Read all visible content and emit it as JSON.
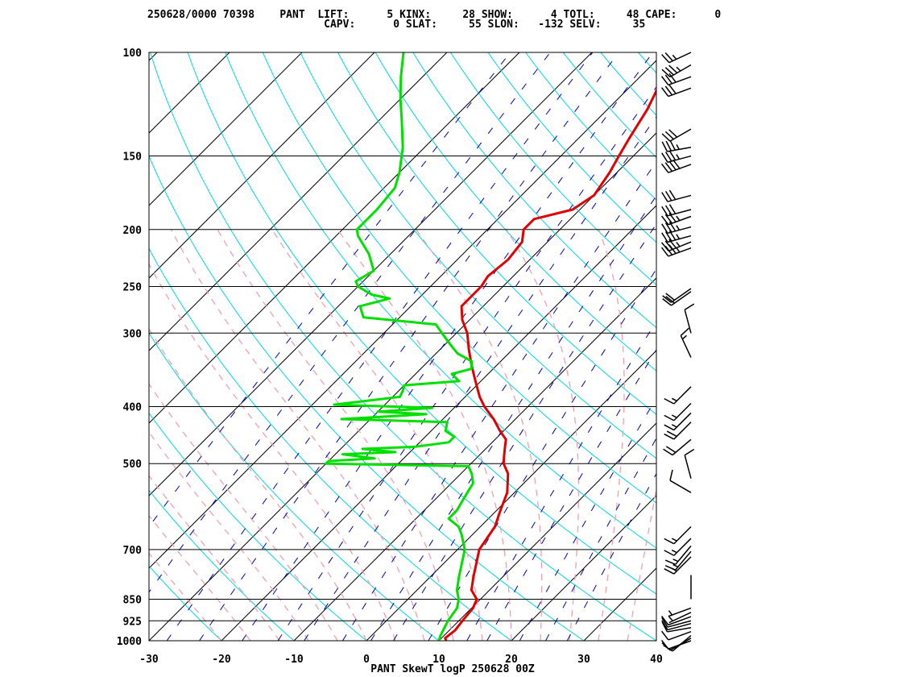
{
  "header": {
    "line1": "250628/0000 70398    PANT  LIFT:      5 KINX:     28 SHOW:      4 TOTL:     48 CAPE:      0",
    "line2": "                            CAPV:      0 SLAT:     55 SLON:   -132 SELV:     35"
  },
  "footer": {
    "title": "PANT SkewT logP 250628 00Z"
  },
  "colors": {
    "temperature": "#e00000",
    "dewpoint": "#00e000",
    "isotherm": "#000000",
    "dry_adiabat": "#00d8e0",
    "moist_adiabat": "#f0a0b0",
    "mixing_ratio": "#0000c0",
    "wind_barb": "#000000"
  },
  "chart_data": {
    "type": "line",
    "title": "PANT SkewT logP 250628 00Z",
    "y_scale": "log-pressure",
    "ylim": [
      1000,
      100
    ],
    "xlim": [
      -30,
      40
    ],
    "xlabel": "",
    "ylabel": "",
    "x_ticks": [
      -30,
      -20,
      -10,
      0,
      10,
      20,
      30,
      40
    ],
    "y_ticks": [
      100,
      150,
      200,
      250,
      300,
      400,
      500,
      700,
      850,
      925,
      1000
    ],
    "x_tick_labels": [
      "-30",
      "-20",
      "-10",
      "0",
      "10",
      "20",
      "30",
      "40"
    ],
    "y_tick_labels": [
      "100",
      "150",
      "200",
      "250",
      "300",
      "400",
      "500",
      "700",
      "850",
      "925",
      "1000"
    ],
    "series": [
      {
        "role": "temperature",
        "points": [
          [
            1000,
            11.0
          ],
          [
            990,
            10.5
          ],
          [
            960,
            10.8
          ],
          [
            925,
            10.5
          ],
          [
            880,
            10.2
          ],
          [
            850,
            9.5
          ],
          [
            820,
            7.5
          ],
          [
            780,
            6.0
          ],
          [
            700,
            3.0
          ],
          [
            640,
            2.0
          ],
          [
            600,
            0.5
          ],
          [
            560,
            -1.0
          ],
          [
            520,
            -3.5
          ],
          [
            500,
            -5.5
          ],
          [
            485,
            -6.5
          ],
          [
            470,
            -7.5
          ],
          [
            455,
            -8.5
          ],
          [
            440,
            -10.5
          ],
          [
            420,
            -13.0
          ],
          [
            400,
            -16.0
          ],
          [
            385,
            -18.0
          ],
          [
            360,
            -21.0
          ],
          [
            340,
            -23.5
          ],
          [
            320,
            -26.0
          ],
          [
            300,
            -28.5
          ],
          [
            285,
            -31.0
          ],
          [
            270,
            -33.0
          ],
          [
            258,
            -33.0
          ],
          [
            250,
            -33.0
          ],
          [
            240,
            -33.5
          ],
          [
            225,
            -33.0
          ],
          [
            210,
            -33.5
          ],
          [
            200,
            -35.0
          ],
          [
            192,
            -35.0
          ],
          [
            185,
            -31.0
          ],
          [
            175,
            -30.0
          ],
          [
            160,
            -31.0
          ],
          [
            150,
            -32.0
          ],
          [
            140,
            -33.0
          ],
          [
            125,
            -34.5
          ],
          [
            115,
            -36.0
          ],
          [
            105,
            -39.0
          ],
          [
            100,
            -41.0
          ]
        ]
      },
      {
        "role": "dewpoint",
        "points": [
          [
            1000,
            10.0
          ],
          [
            980,
            9.5
          ],
          [
            925,
            8.5
          ],
          [
            880,
            8.0
          ],
          [
            850,
            7.0
          ],
          [
            820,
            5.5
          ],
          [
            780,
            4.0
          ],
          [
            700,
            1.0
          ],
          [
            660,
            -1.5
          ],
          [
            640,
            -3.0
          ],
          [
            620,
            -5.5
          ],
          [
            600,
            -5.5
          ],
          [
            580,
            -6.0
          ],
          [
            560,
            -6.5
          ],
          [
            540,
            -7.0
          ],
          [
            520,
            -8.5
          ],
          [
            505,
            -10.0
          ],
          [
            500,
            -30.0
          ],
          [
            495,
            -30.0
          ],
          [
            490,
            -24.0
          ],
          [
            482,
            -29.0
          ],
          [
            478,
            -22.0
          ],
          [
            472,
            -27.0
          ],
          [
            468,
            -20.0
          ],
          [
            460,
            -16.0
          ],
          [
            450,
            -16.0
          ],
          [
            440,
            -18.0
          ],
          [
            425,
            -19.0
          ],
          [
            420,
            -34.0
          ],
          [
            412,
            -23.0
          ],
          [
            408,
            -30.0
          ],
          [
            402,
            -23.0
          ],
          [
            397,
            -37.0
          ],
          [
            385,
            -29.0
          ],
          [
            375,
            -29.5
          ],
          [
            368,
            -30.0
          ],
          [
            362,
            -23.0
          ],
          [
            352,
            -25.0
          ],
          [
            345,
            -23.0
          ],
          [
            335,
            -24.0
          ],
          [
            325,
            -27.0
          ],
          [
            315,
            -29.0
          ],
          [
            300,
            -32.0
          ],
          [
            290,
            -34.0
          ],
          [
            282,
            -45.0
          ],
          [
            270,
            -47.0
          ],
          [
            262,
            -44.0
          ],
          [
            258,
            -47.0
          ],
          [
            250,
            -50.0
          ],
          [
            245,
            -51.0
          ],
          [
            235,
            -50.0
          ],
          [
            220,
            -53.0
          ],
          [
            205,
            -57.0
          ],
          [
            200,
            -58.0
          ],
          [
            185,
            -58.0
          ],
          [
            170,
            -58.5
          ],
          [
            160,
            -60.0
          ],
          [
            145,
            -63.0
          ],
          [
            130,
            -67.0
          ],
          [
            120,
            -70.0
          ],
          [
            110,
            -73.0
          ],
          [
            100,
            -76.0
          ]
        ]
      }
    ],
    "wind_barbs": [
      [
        1000,
        250,
        10
      ],
      [
        990,
        240,
        10
      ],
      [
        980,
        230,
        10
      ],
      [
        965,
        250,
        10
      ],
      [
        950,
        260,
        10
      ],
      [
        935,
        255,
        10
      ],
      [
        925,
        255,
        10
      ],
      [
        910,
        250,
        10
      ],
      [
        895,
        245,
        5
      ],
      [
        880,
        250,
        5
      ],
      [
        850,
        360,
        0
      ],
      [
        720,
        225,
        15
      ],
      [
        705,
        220,
        15
      ],
      [
        690,
        220,
        15
      ],
      [
        670,
        225,
        15
      ],
      [
        640,
        225,
        15
      ],
      [
        560,
        300,
        10
      ],
      [
        530,
        345,
        10
      ],
      [
        455,
        230,
        20
      ],
      [
        425,
        225,
        20
      ],
      [
        410,
        225,
        15
      ],
      [
        395,
        225,
        15
      ],
      [
        370,
        225,
        15
      ],
      [
        330,
        335,
        15
      ],
      [
        300,
        345,
        10
      ],
      [
        255,
        235,
        20
      ],
      [
        252,
        235,
        20
      ],
      [
        215,
        250,
        35
      ],
      [
        210,
        248,
        35
      ],
      [
        205,
        255,
        35
      ],
      [
        198,
        255,
        35
      ],
      [
        190,
        250,
        35
      ],
      [
        185,
        255,
        30
      ],
      [
        175,
        255,
        30
      ],
      [
        155,
        250,
        40
      ],
      [
        150,
        255,
        35
      ],
      [
        145,
        260,
        35
      ],
      [
        135,
        240,
        30
      ],
      [
        115,
        250,
        30
      ],
      [
        110,
        250,
        30
      ],
      [
        105,
        240,
        35
      ],
      [
        100,
        245,
        25
      ]
    ]
  }
}
